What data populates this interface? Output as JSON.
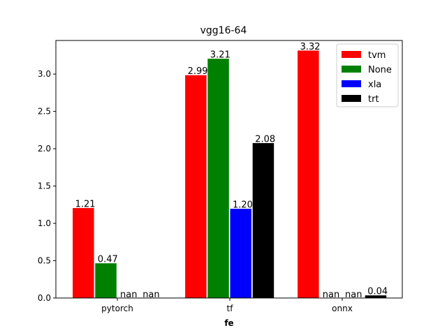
{
  "chart_data": {
    "type": "bar",
    "title": "vgg16-64",
    "xlabel": "fe",
    "ylabel": "",
    "categories": [
      "pytorch",
      "tf",
      "onnx"
    ],
    "ylim": [
      0,
      3.45
    ],
    "yticks": [
      0.0,
      0.5,
      1.0,
      1.5,
      2.0,
      2.5,
      3.0
    ],
    "yticklabels": [
      "0.0",
      "0.5",
      "1.0",
      "1.5",
      "2.0",
      "2.5",
      "3.0"
    ],
    "legend_position": "top-right",
    "series": [
      {
        "name": "tvm",
        "color": "#ff0000",
        "values": [
          1.21,
          2.99,
          3.32
        ],
        "labels": [
          "1.21",
          "2.99",
          "3.32"
        ]
      },
      {
        "name": "None",
        "color": "#008000",
        "values": [
          0.47,
          3.21,
          null
        ],
        "labels": [
          "0.47",
          "3.21",
          "nan"
        ]
      },
      {
        "name": "xla",
        "color": "#0000ff",
        "values": [
          null,
          1.2,
          null
        ],
        "labels": [
          "nan",
          "1.20",
          "nan"
        ]
      },
      {
        "name": "trt",
        "color": "#000000",
        "values": [
          null,
          2.08,
          0.04
        ],
        "labels": [
          "nan",
          "2.08",
          "0.04"
        ]
      }
    ]
  }
}
